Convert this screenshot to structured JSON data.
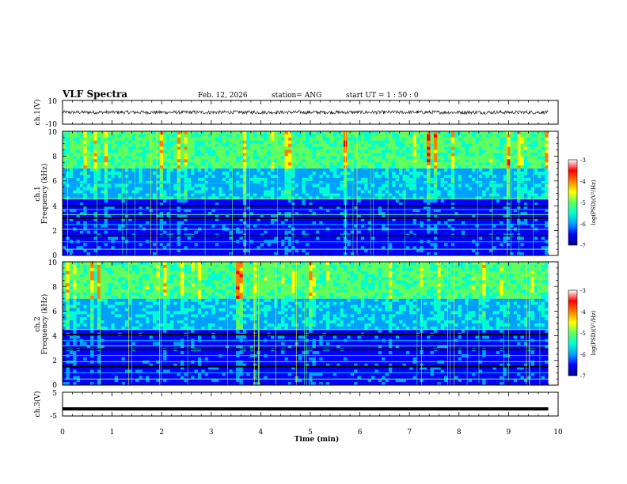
{
  "header": {
    "title": "VLF Spectra",
    "date": "Feb. 12, 2026",
    "station": "station= ANG",
    "start_ut": "start UT =  1 : 50 : 0"
  },
  "chart_data": [
    {
      "type": "line",
      "name": "ch1-waveform",
      "ylabel": "ch.1(V)",
      "ylim": [
        -10,
        10
      ],
      "y_ticks": [
        "10",
        "-10"
      ],
      "baseline": 0,
      "noise_amplitude": 1.5,
      "xlim": [
        0,
        10
      ],
      "x_end": 9.8
    },
    {
      "type": "heatmap",
      "name": "ch1-spectrogram",
      "ylabel_top": "ch.1",
      "ylabel": "Frequency (kHz)",
      "ylim": [
        0,
        10
      ],
      "y_ticks": [
        "0",
        "2",
        "4",
        "6",
        "8",
        "10"
      ],
      "xlim": [
        0,
        10
      ],
      "x_end": 9.8,
      "colorbar": {
        "label": "log(PSD)(V²/Hz)",
        "range": [
          -7,
          -3
        ],
        "ticks": [
          "-3",
          "-4",
          "-5",
          "-6",
          "-7"
        ]
      }
    },
    {
      "type": "heatmap",
      "name": "ch2-spectrogram",
      "ylabel_top": "ch.2",
      "ylabel": "Frequency (kHz)",
      "ylim": [
        0,
        10
      ],
      "y_ticks": [
        "0",
        "2",
        "4",
        "6",
        "8",
        "10"
      ],
      "xlim": [
        0,
        10
      ],
      "x_end": 9.8,
      "colorbar": {
        "label": "log(PSD)(V²/Hz)",
        "range": [
          -7,
          -3
        ],
        "ticks": [
          "-3",
          "-4",
          "-5",
          "-6",
          "-7"
        ]
      }
    },
    {
      "type": "line",
      "name": "ch3-waveform",
      "ylabel": "ch.3(V)",
      "ylim": [
        -5,
        5
      ],
      "y_ticks": [
        "5",
        "-5"
      ],
      "baseline": -2,
      "xlim": [
        0,
        10
      ],
      "x_end": 9.8
    }
  ],
  "x_axis": {
    "label": "Time (min)",
    "ticks": [
      "0",
      "1",
      "2",
      "3",
      "4",
      "5",
      "6",
      "7",
      "8",
      "9",
      "10"
    ]
  },
  "colors": {
    "colormap": [
      "#000080",
      "#0000ff",
      "#00a0ff",
      "#00ffd0",
      "#60ff60",
      "#ffff00",
      "#ff8000",
      "#ff0000",
      "#ffffff"
    ]
  }
}
